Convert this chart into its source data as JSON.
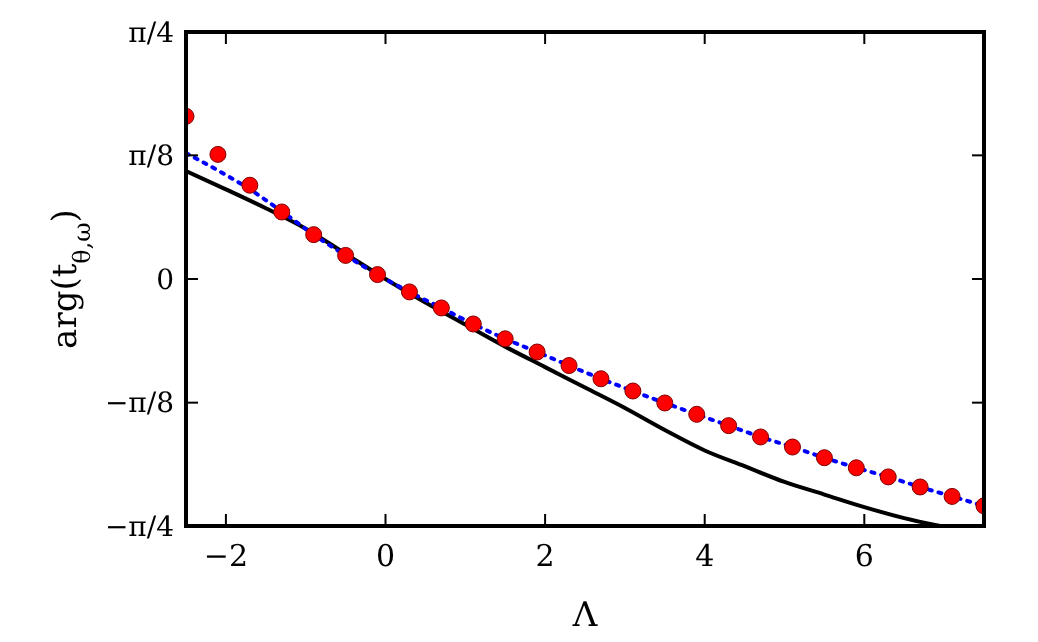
{
  "chart_data": {
    "type": "line",
    "xlabel": "Λ",
    "ylabel": "arg(t$_{θ,ω}$)",
    "xlim": [
      -2.5,
      7.5
    ],
    "xticks": [
      -2,
      0,
      2,
      4,
      6
    ],
    "ylim": [
      -0.785,
      0.785
    ],
    "yticks": [
      {
        "value": -0.785,
        "label": "−π/4"
      },
      {
        "value": -0.393,
        "label": "−π/8"
      },
      0,
      {
        "value": 0.393,
        "label": "π/8"
      },
      {
        "value": 0.785,
        "label": "π/4"
      }
    ],
    "grid": false,
    "series": [
      {
        "color": "#000000",
        "line_style": "solid",
        "marker": "none",
        "x": [
          -2.5,
          -2,
          -1.5,
          -1,
          -0.5,
          0,
          0.5,
          1,
          1.5,
          2,
          2.5,
          3,
          3.5,
          4,
          4.5,
          5,
          5.5,
          6,
          6.5,
          6.95
        ],
        "values": [
          0.343,
          0.285,
          0.225,
          0.16,
          0.08,
          0.0,
          -0.075,
          -0.145,
          -0.215,
          -0.28,
          -0.345,
          -0.41,
          -0.48,
          -0.545,
          -0.595,
          -0.645,
          -0.685,
          -0.725,
          -0.76,
          -0.785
        ]
      },
      {
        "color": "#0000ff",
        "line_style": "dotted",
        "marker": "none",
        "x": [
          -2.5,
          -2.1,
          -1.7,
          -1.3,
          -0.9,
          -0.5,
          -0.1,
          0.3,
          0.7,
          1.1,
          1.5,
          1.9,
          2.3,
          2.7,
          3.1,
          3.5,
          3.9,
          4.3,
          4.7,
          5.1,
          5.5,
          5.9,
          6.3,
          6.7,
          7.1,
          7.5
        ],
        "values": [
          0.4,
          0.345,
          0.285,
          0.215,
          0.141,
          0.075,
          0.014,
          -0.041,
          -0.092,
          -0.143,
          -0.19,
          -0.232,
          -0.275,
          -0.317,
          -0.356,
          -0.394,
          -0.43,
          -0.466,
          -0.502,
          -0.534,
          -0.568,
          -0.6,
          -0.629,
          -0.661,
          -0.691,
          -0.721
        ]
      },
      {
        "type": "scatter",
        "color": "#ff0000",
        "marker": "circle",
        "x": [
          -2.5,
          -2.1,
          -1.7,
          -1.3,
          -0.9,
          -0.5,
          -0.1,
          0.3,
          0.7,
          1.1,
          1.5,
          1.9,
          2.3,
          2.7,
          3.1,
          3.5,
          3.9,
          4.3,
          4.7,
          5.1,
          5.5,
          5.9,
          6.3,
          6.7,
          7.1,
          7.5
        ],
        "values": [
          0.517,
          0.396,
          0.298,
          0.213,
          0.141,
          0.075,
          0.014,
          -0.041,
          -0.092,
          -0.143,
          -0.19,
          -0.232,
          -0.275,
          -0.317,
          -0.356,
          -0.394,
          -0.43,
          -0.466,
          -0.502,
          -0.534,
          -0.568,
          -0.6,
          -0.629,
          -0.661,
          -0.691,
          -0.721
        ]
      }
    ]
  }
}
